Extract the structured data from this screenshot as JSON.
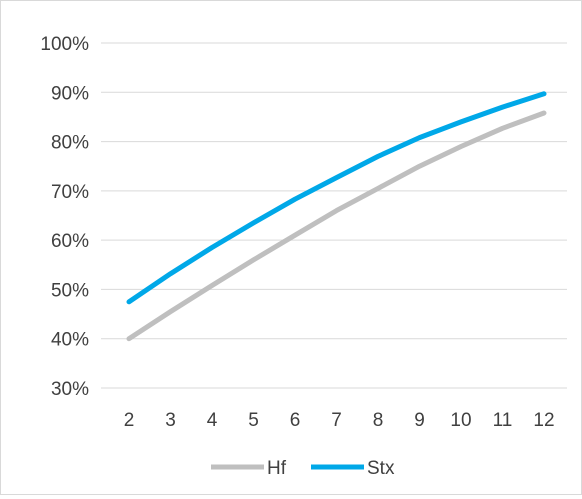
{
  "chart_data": {
    "type": "line",
    "x": [
      2,
      3,
      4,
      5,
      6,
      7,
      8,
      9,
      10,
      11,
      12
    ],
    "series": [
      {
        "name": "Hf",
        "color": "#bfbfbf",
        "values": [
          40.0,
          45.5,
          50.8,
          56.0,
          61.0,
          66.0,
          70.5,
          75.0,
          79.0,
          82.7,
          85.8
        ]
      },
      {
        "name": "Stx",
        "color": "#00a8e8",
        "values": [
          47.5,
          53.2,
          58.5,
          63.5,
          68.3,
          72.7,
          77.0,
          80.8,
          84.0,
          87.0,
          89.7
        ]
      }
    ],
    "y_ticks": [
      "30%",
      "40%",
      "50%",
      "60%",
      "70%",
      "80%",
      "90%",
      "100%"
    ],
    "x_ticks": [
      "2",
      "3",
      "4",
      "5",
      "6",
      "7",
      "8",
      "9",
      "10",
      "11",
      "12"
    ],
    "ylim": [
      30,
      100
    ],
    "grid": true,
    "legend": "bottom"
  }
}
